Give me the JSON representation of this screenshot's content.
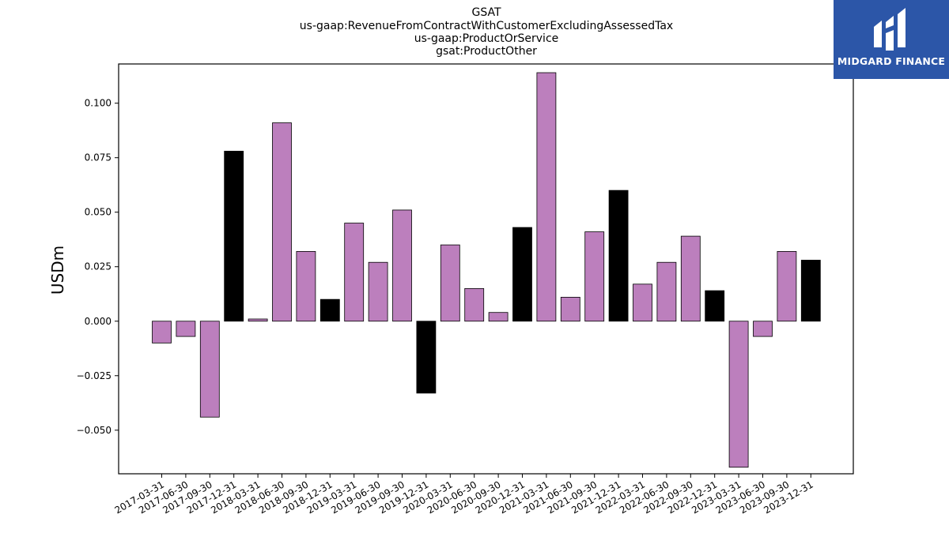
{
  "chart_data": {
    "type": "bar",
    "title_lines": [
      "GSAT",
      "us-gaap:RevenueFromContractWithCustomerExcludingAssessedTax",
      "us-gaap:ProductOrService",
      "gsat:ProductOther"
    ],
    "xlabel": "",
    "ylabel": "USDm",
    "ylim": [
      -0.07,
      0.118
    ],
    "yticks": [
      -0.05,
      -0.025,
      0.0,
      0.025,
      0.05,
      0.075,
      0.1
    ],
    "ytick_labels": [
      "−0.050",
      "−0.025",
      "0.000",
      "0.025",
      "0.050",
      "0.075",
      "0.100"
    ],
    "grid": false,
    "colors": {
      "quarter": "#bc7fbd",
      "year_end": "#000000",
      "edge": "#000000"
    },
    "categories": [
      "2017-03-31",
      "2017-06-30",
      "2017-09-30",
      "2017-12-31",
      "2018-03-31",
      "2018-06-30",
      "2018-09-30",
      "2018-12-31",
      "2019-03-31",
      "2019-06-30",
      "2019-09-30",
      "2019-12-31",
      "2020-03-31",
      "2020-06-30",
      "2020-09-30",
      "2020-12-31",
      "2021-03-31",
      "2021-06-30",
      "2021-09-30",
      "2021-12-31",
      "2022-03-31",
      "2022-06-30",
      "2022-09-30",
      "2022-12-31",
      "2023-03-31",
      "2023-06-30",
      "2023-09-30",
      "2023-12-31"
    ],
    "values": [
      -0.01,
      -0.007,
      -0.044,
      0.078,
      0.001,
      0.091,
      0.032,
      0.01,
      0.045,
      0.027,
      0.051,
      -0.033,
      0.035,
      0.015,
      0.004,
      0.043,
      0.114,
      0.011,
      0.041,
      0.06,
      0.017,
      0.027,
      0.039,
      0.014,
      -0.067,
      -0.007,
      0.032,
      0.028
    ]
  },
  "logo": {
    "text": "MIDGARD FINANCE",
    "icon": "midgard-logo-icon"
  }
}
